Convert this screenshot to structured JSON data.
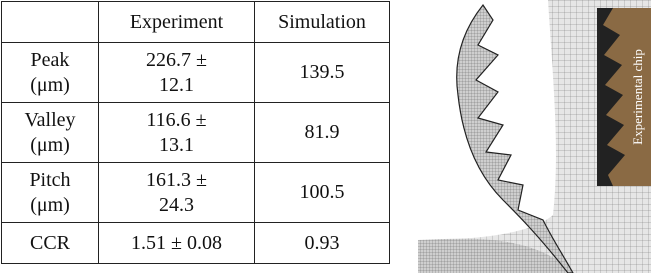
{
  "table": {
    "header": [
      "",
      "Experiment",
      "Simulation"
    ],
    "rows": [
      [
        "Peak (μm)",
        "226.7 ± 12.1",
        "139.5"
      ],
      [
        "Valley (μm)",
        "116.6 ± 13.1",
        "81.9"
      ],
      [
        "Pitch (μm)",
        "161.3 ± 24.3",
        "100.5"
      ],
      [
        "CCR",
        "1.51 ± 0.08",
        "0.93"
      ]
    ]
  },
  "figure": {
    "inset_label": "Experimental chip"
  }
}
